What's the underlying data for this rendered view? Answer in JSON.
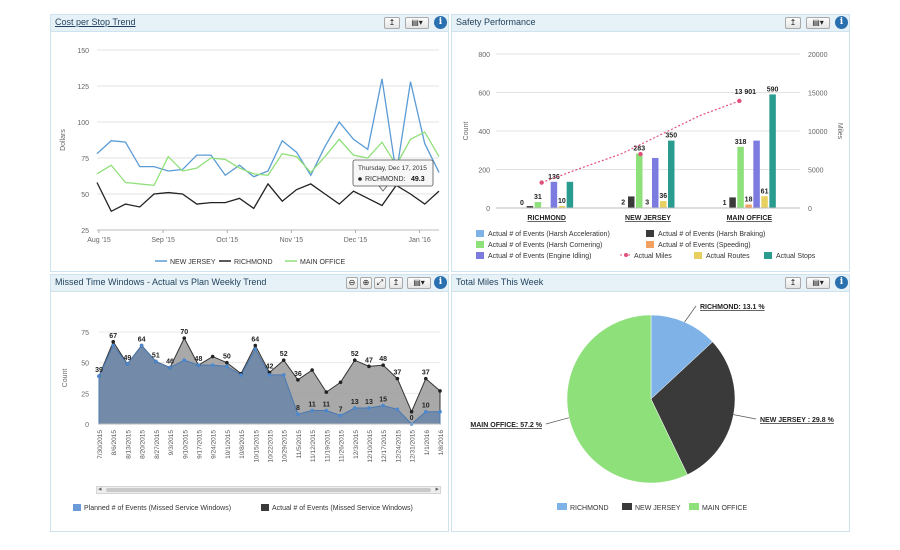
{
  "panels": {
    "cost": {
      "title": "Cost per Stop Trend"
    },
    "safety": {
      "title": "Safety Performance"
    },
    "missed": {
      "title": "Missed Time Windows - Actual vs Plan Weekly Trend"
    },
    "miles": {
      "title": "Total Miles This Week"
    }
  },
  "icons": {
    "export": "↥",
    "menu": "▤▾",
    "info": "i",
    "zoom_in": "⊕",
    "zoom_out": "⊖",
    "reset": "⤢"
  },
  "colors": {
    "new_jersey": "#5b9bd5",
    "richmond": "#222222",
    "main_office": "#90e07a",
    "harsh_accel": "#7fb3e8",
    "harsh_braking": "#3a3a3a",
    "harsh_cornering": "#8de07a",
    "speeding": "#f0a060",
    "idling": "#7b7be0",
    "miles": "#e0507a",
    "routes": "#e8d060",
    "stops": "#2a9b8f",
    "planned": "#6a86a8",
    "actual_missed": "#7a7a7a",
    "pie_richmond": "#7fb3e8",
    "pie_new_jersey": "#3a3a3a",
    "pie_main_office": "#8de07a"
  },
  "chart_data": [
    {
      "id": "cost_per_stop",
      "type": "line",
      "title": "Cost per Stop Trend",
      "ylabel": "Dollars",
      "ylim": [
        25,
        150
      ],
      "yticks": [
        "150",
        "125",
        "100",
        "75",
        "50",
        "25"
      ],
      "x_tick_labels": [
        "Aug '15",
        "Sep '15",
        "Oct '15",
        "Nov '15",
        "Dec '15",
        "Jan '16"
      ],
      "grid": true,
      "legend": "bottom",
      "series": [
        {
          "name": "NEW JERSEY",
          "values": [
            78,
            87,
            86,
            69,
            69,
            66,
            67,
            77,
            77,
            63,
            70,
            62,
            66,
            87,
            79,
            63,
            83,
            100,
            88,
            81,
            130,
            64,
            128,
            85,
            65
          ]
        },
        {
          "name": "RICHMOND",
          "values": [
            58,
            38,
            43,
            41,
            50,
            51,
            50,
            43,
            44,
            44,
            47,
            40,
            57,
            45,
            53,
            57,
            50,
            43,
            52,
            47,
            42,
            56,
            50,
            43,
            52
          ]
        },
        {
          "name": "MAIN OFFICE",
          "values": [
            64,
            70,
            58,
            57,
            56,
            76,
            66,
            68,
            75,
            74,
            68,
            64,
            63,
            78,
            76,
            65,
            76,
            88,
            77,
            75,
            86,
            70,
            88,
            93,
            76
          ]
        }
      ],
      "tooltip": {
        "date": "Thursday, Dec 17, 2015",
        "series": "RICHMOND",
        "value": "49.3"
      }
    },
    {
      "id": "safety_performance",
      "type": "bar",
      "title": "Safety Performance",
      "ylabel": "Count",
      "ylabel_right": "Miles",
      "ylim": [
        0,
        800
      ],
      "ylim_right": [
        0,
        20000
      ],
      "yticks_left": [
        "800",
        "600",
        "400",
        "200",
        "0"
      ],
      "yticks_right": [
        "20000",
        "15000",
        "10000",
        "5000",
        "0"
      ],
      "categories": [
        "RICHMOND",
        "NEW JERSEY",
        "MAIN OFFICE"
      ],
      "legend": "bottom",
      "series": [
        {
          "name": "Actual # of Events (Harsh Acceleration)",
          "values": [
            0,
            2,
            1
          ],
          "labels": [
            "0",
            "2",
            "1"
          ]
        },
        {
          "name": "Actual # of Events (Harsh Braking)",
          "values": [
            10,
            60,
            55
          ],
          "labels": [
            "",
            "",
            ""
          ]
        },
        {
          "name": "Actual # of Events (Harsh Cornering)",
          "values": [
            31,
            283,
            318
          ],
          "labels": [
            "31",
            "283",
            "318"
          ]
        },
        {
          "name": "Actual # of Events (Speeding)",
          "values": [
            3,
            3,
            18
          ],
          "labels": [
            "",
            "3",
            "18"
          ]
        },
        {
          "name": "Actual # of Events (Engine Idling)",
          "values": [
            136,
            260,
            350
          ],
          "labels": [
            "136",
            "",
            ""
          ]
        },
        {
          "name": "Actual Routes",
          "values": [
            10,
            36,
            61
          ],
          "labels": [
            "10",
            "36",
            "61"
          ]
        },
        {
          "name": "Actual Stops",
          "values": [
            136,
            350,
            590
          ],
          "labels": [
            "",
            "350",
            "590"
          ]
        }
      ],
      "line_series": {
        "name": "Actual Miles",
        "points": [
          3300,
          7000,
          13901
        ],
        "peak_label": "13 901",
        "points_shown": [
          3300,
          5200,
          7000,
          9500,
          12000,
          13901
        ]
      }
    },
    {
      "id": "missed_time_windows",
      "type": "area",
      "title": "Missed Time Windows - Actual vs Plan Weekly Trend",
      "ylabel": "Count",
      "ylim": [
        0,
        75
      ],
      "yticks": [
        "75",
        "50",
        "25",
        "0"
      ],
      "categories": [
        "7/30/2015",
        "8/6/2015",
        "8/13/2015",
        "8/20/2015",
        "8/27/2015",
        "9/3/2015",
        "9/10/2015",
        "9/17/2015",
        "9/24/2015",
        "10/1/2015",
        "10/8/2015",
        "10/15/2015",
        "10/22/2015",
        "10/29/2015",
        "11/5/2015",
        "11/12/2015",
        "11/19/2015",
        "11/26/2015",
        "12/3/2015",
        "12/10/2015",
        "12/17/2015",
        "12/24/2015",
        "12/31/2015",
        "1/1/2016",
        "1/8/2016"
      ],
      "x_tick_labels": [
        "7/30/2015",
        "8/6/2015",
        "8/13/2015",
        "8/20/2015",
        "8/27/2015",
        "9/3/2015",
        "9/10/2015",
        "9/17/2015",
        "9/24/2015",
        "10/1/2015",
        "10/8/2015",
        "10/15/2015",
        "10/22/2015",
        "10/29/2015",
        "11/5/2015",
        "11/12/2015",
        "11/19/2015",
        "11/26/2015",
        "12/3/2015",
        "12/10/2015",
        "12/17/2015",
        "12/24/2015",
        "12/31/2015",
        "1/1/2016",
        "1/8/2016"
      ],
      "legend": "bottom",
      "series": [
        {
          "name": "Planned # of Events (Missed Service Windows)",
          "values": [
            39,
            64,
            49,
            64,
            51,
            46,
            52,
            48,
            48,
            47,
            40,
            61,
            40,
            40,
            8,
            11,
            11,
            7,
            13,
            13,
            15,
            12,
            0,
            10,
            10
          ],
          "labels": [
            "39",
            "",
            "",
            "",
            "",
            "",
            "",
            "",
            "",
            "",
            "",
            "",
            "",
            "",
            "8",
            "11",
            "11",
            "7",
            "13",
            "13",
            "15",
            "",
            "0",
            "10",
            ""
          ]
        },
        {
          "name": "Actual # of Events (Missed Service Windows)",
          "values": [
            39,
            67,
            49,
            64,
            51,
            46,
            70,
            48,
            55,
            50,
            41,
            64,
            42,
            52,
            36,
            44,
            26,
            34,
            52,
            47,
            48,
            37,
            10,
            37,
            27
          ],
          "labels": [
            "",
            "67",
            "49",
            "64",
            "51",
            "46",
            "70",
            "48",
            "",
            "50",
            "",
            "64",
            "42",
            "52",
            "36",
            "",
            "",
            "",
            "52",
            "47",
            "48",
            "37",
            "",
            "37",
            ""
          ]
        }
      ]
    },
    {
      "id": "total_miles",
      "type": "pie",
      "title": "Total Miles This Week",
      "legend": "bottom",
      "slices": [
        {
          "name": "RICHMOND",
          "value": 13.1,
          "label": "RICHMOND: 13.1 %"
        },
        {
          "name": "NEW JERSEY",
          "value": 29.8,
          "label": "NEW JERSEY : 29.8 %"
        },
        {
          "name": "MAIN OFFICE",
          "value": 57.2,
          "label": "MAIN OFFICE: 57.2 %"
        }
      ]
    }
  ]
}
